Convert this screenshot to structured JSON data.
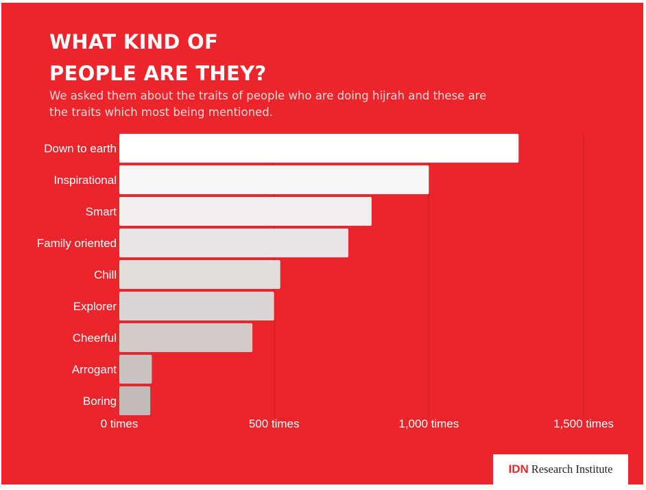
{
  "title": "WHAT KIND OF\nPEOPLE  ARE THEY?",
  "subtitle": "We asked them about the traits of people who are doing hijrah and these are the traits which most being mentioned.",
  "colors": {
    "background": "#ec242b",
    "bar_top": "#ffffff",
    "bar_bottom": "#c2babb",
    "gridline": "#c81e24",
    "label_text": "#ffffff"
  },
  "logo": {
    "mark": "IDN",
    "text": "Research Institute"
  },
  "chart_data": {
    "type": "bar",
    "orientation": "horizontal",
    "categories": [
      "Down to earth",
      "Inspirational",
      "Smart",
      "Family oriented",
      "Chill",
      "Explorer",
      "Cheerful",
      "Arrogant",
      "Boring"
    ],
    "values": [
      1290,
      1000,
      815,
      740,
      520,
      500,
      430,
      105,
      100
    ],
    "xlim": [
      0,
      1500
    ],
    "xticks": [
      0,
      500,
      1000,
      1500
    ],
    "xtick_labels": [
      "0 times",
      "500 times",
      "1,000 times",
      "1,500 times"
    ],
    "grid": true,
    "legend": "none"
  }
}
